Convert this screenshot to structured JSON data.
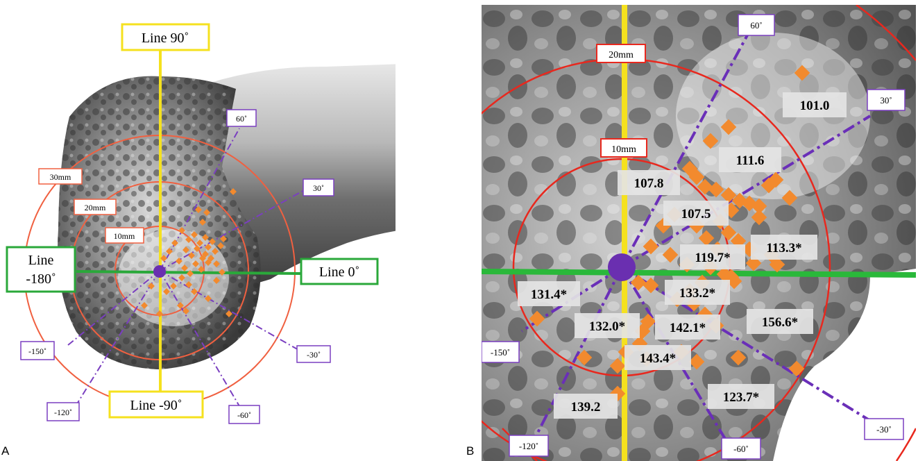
{
  "panel_a": {
    "letter": "A",
    "line_labels": {
      "top": "Line 90˚",
      "bottom": "Line -90˚",
      "right": "Line 0˚",
      "left_line1": "Line",
      "left_line2": "-180˚"
    },
    "ring_labels": [
      "10mm",
      "20mm",
      "30mm"
    ],
    "angle_labels": [
      "60˚",
      "30˚",
      "-30˚",
      "-60˚",
      "-120˚",
      "-150˚"
    ],
    "colors": {
      "line_90": "#f5e11e",
      "line_0": "#2aa83a",
      "rings": "#f06040",
      "angle_lines": "#7a3fc0",
      "points": "#f28a2e",
      "center": "#6a2fb0"
    }
  },
  "panel_b": {
    "letter": "B",
    "ring_labels": [
      "10mm",
      "20mm"
    ],
    "angle_labels": [
      "60˚",
      "30˚",
      "-30˚",
      "-60˚",
      "-120˚",
      "-150˚"
    ],
    "values": [
      "101.0",
      "111.6",
      "107.8",
      "107.5",
      "113.3*",
      "119.7*",
      "133.2*",
      "131.4*",
      "132.0*",
      "142.1*",
      "156.6*",
      "143.4*",
      "139.2",
      "123.7*"
    ]
  }
}
